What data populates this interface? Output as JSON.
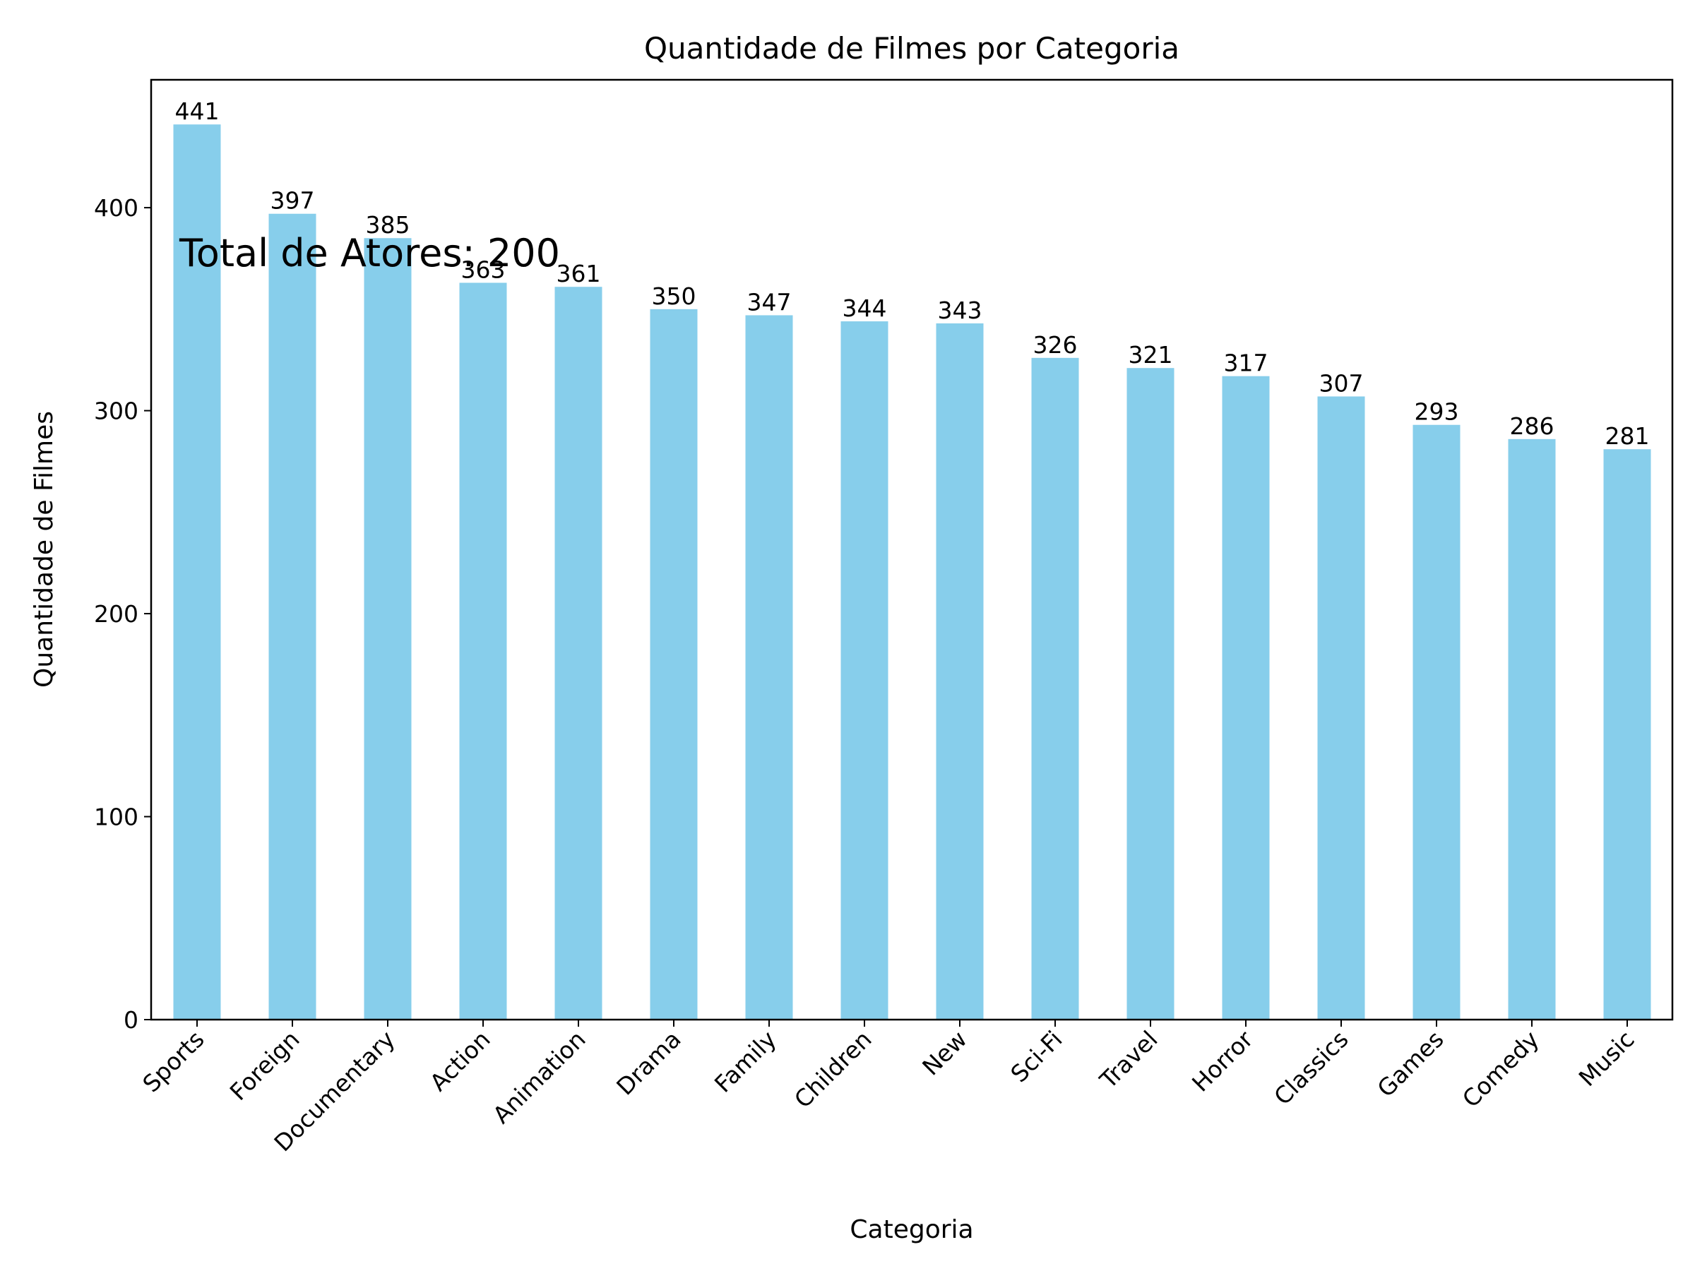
{
  "chart_data": {
    "type": "bar",
    "title": "Quantidade de Filmes por Categoria",
    "xlabel": "Categoria",
    "ylabel": "Quantidade de Filmes",
    "categories": [
      "Sports",
      "Foreign",
      "Documentary",
      "Action",
      "Animation",
      "Drama",
      "Family",
      "Children",
      "New",
      "Sci-Fi",
      "Travel",
      "Horror",
      "Classics",
      "Games",
      "Comedy",
      "Music"
    ],
    "values": [
      441,
      397,
      385,
      363,
      361,
      350,
      347,
      344,
      343,
      326,
      321,
      317,
      307,
      293,
      286,
      281
    ],
    "ylim": [
      0,
      463
    ],
    "yticks": [
      0,
      100,
      200,
      300,
      400
    ],
    "bar_color": "#87CEEB",
    "grid": false,
    "annotation": "Total de Atores: 200"
  }
}
